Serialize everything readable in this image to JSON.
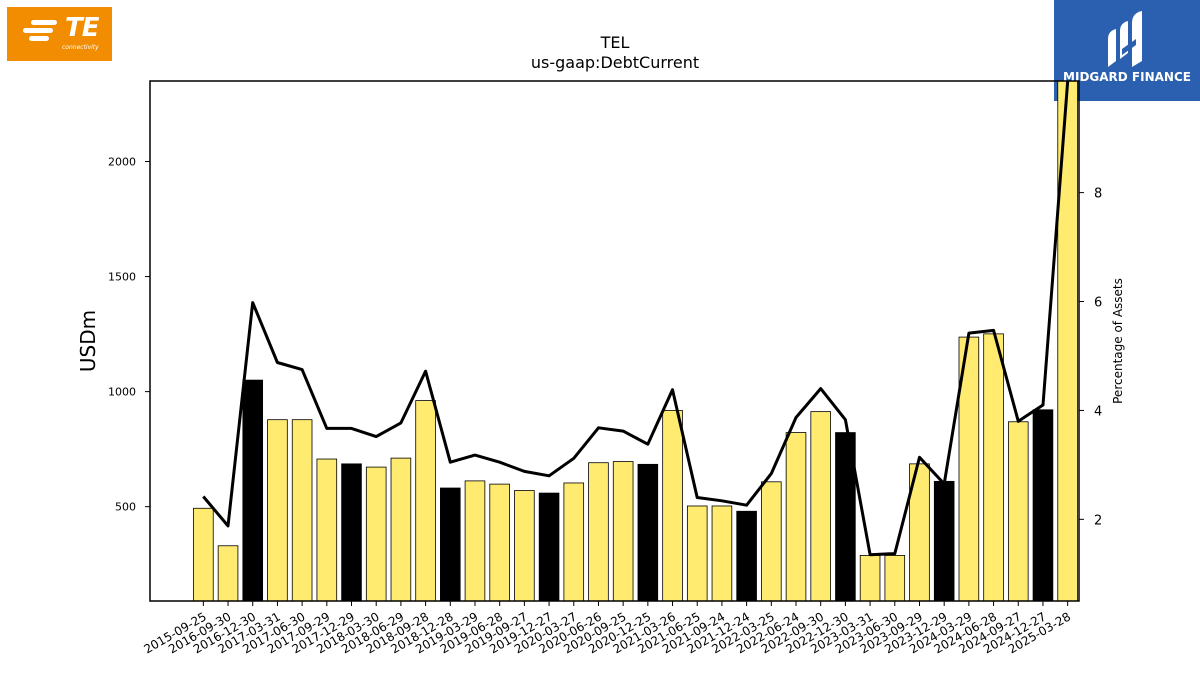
{
  "logos": {
    "left": {
      "name": "TE",
      "subtitle": "connectivity",
      "color": "#f28c00"
    },
    "right": {
      "name": "MIDGARD FINANCE",
      "color": "#2b5fb0"
    }
  },
  "chart_data": {
    "type": "bar",
    "title": "TEL",
    "subtitle": "us-gaap:DebtCurrent",
    "ylabel": "USDm",
    "y2label": "Percentage of Assets",
    "ylim": [
      90,
      2350
    ],
    "y2lim": [
      0.5,
      10.05
    ],
    "yticks": [
      500,
      1000,
      1500,
      2000
    ],
    "y2ticks": [
      2,
      4,
      6,
      8
    ],
    "grid": false,
    "colors": {
      "bar_default": "#ffeb70",
      "bar_highlight": "#000000",
      "line": "#000000"
    },
    "categories": [
      "2015-09-25",
      "2016-09-30",
      "2016-12-30",
      "2017-03-31",
      "2017-06-30",
      "2017-09-29",
      "2017-12-29",
      "2018-03-30",
      "2018-06-29",
      "2018-09-28",
      "2018-12-28",
      "2019-03-29",
      "2019-06-28",
      "2019-09-27",
      "2019-12-27",
      "2020-03-27",
      "2020-06-26",
      "2020-09-25",
      "2020-12-25",
      "2021-03-26",
      "2021-06-25",
      "2021-09-24",
      "2021-12-24",
      "2022-03-25",
      "2022-06-24",
      "2022-09-30",
      "2022-12-30",
      "2023-03-31",
      "2023-06-30",
      "2023-09-29",
      "2023-12-29",
      "2024-03-29",
      "2024-06-28",
      "2024-09-27",
      "2024-12-27",
      "2025-03-28"
    ],
    "series": [
      {
        "type": "bar",
        "values": [
          493,
          330,
          1050,
          878,
          878,
          707,
          686,
          672,
          711,
          961,
          581,
          612,
          598,
          570,
          559,
          603,
          691,
          696,
          684,
          918,
          503,
          503,
          480,
          608,
          822,
          913,
          822,
          288,
          288,
          686,
          610,
          1237,
          1251,
          869,
          921,
          2350
        ],
        "highlight": [
          false,
          false,
          true,
          false,
          false,
          false,
          true,
          false,
          false,
          false,
          true,
          false,
          false,
          false,
          true,
          false,
          false,
          false,
          true,
          false,
          false,
          false,
          true,
          false,
          false,
          false,
          true,
          false,
          false,
          false,
          true,
          false,
          false,
          false,
          true,
          false
        ]
      },
      {
        "type": "line",
        "axis": "right",
        "values": [
          2.42,
          1.88,
          5.98,
          4.88,
          4.75,
          3.67,
          3.67,
          3.52,
          3.77,
          4.72,
          3.05,
          3.18,
          3.05,
          2.88,
          2.8,
          3.12,
          3.68,
          3.62,
          3.38,
          4.38,
          2.4,
          2.34,
          2.26,
          2.84,
          3.87,
          4.4,
          3.83,
          1.35,
          1.37,
          3.14,
          2.65,
          5.42,
          5.47,
          3.8,
          4.1,
          10.1
        ]
      }
    ]
  }
}
